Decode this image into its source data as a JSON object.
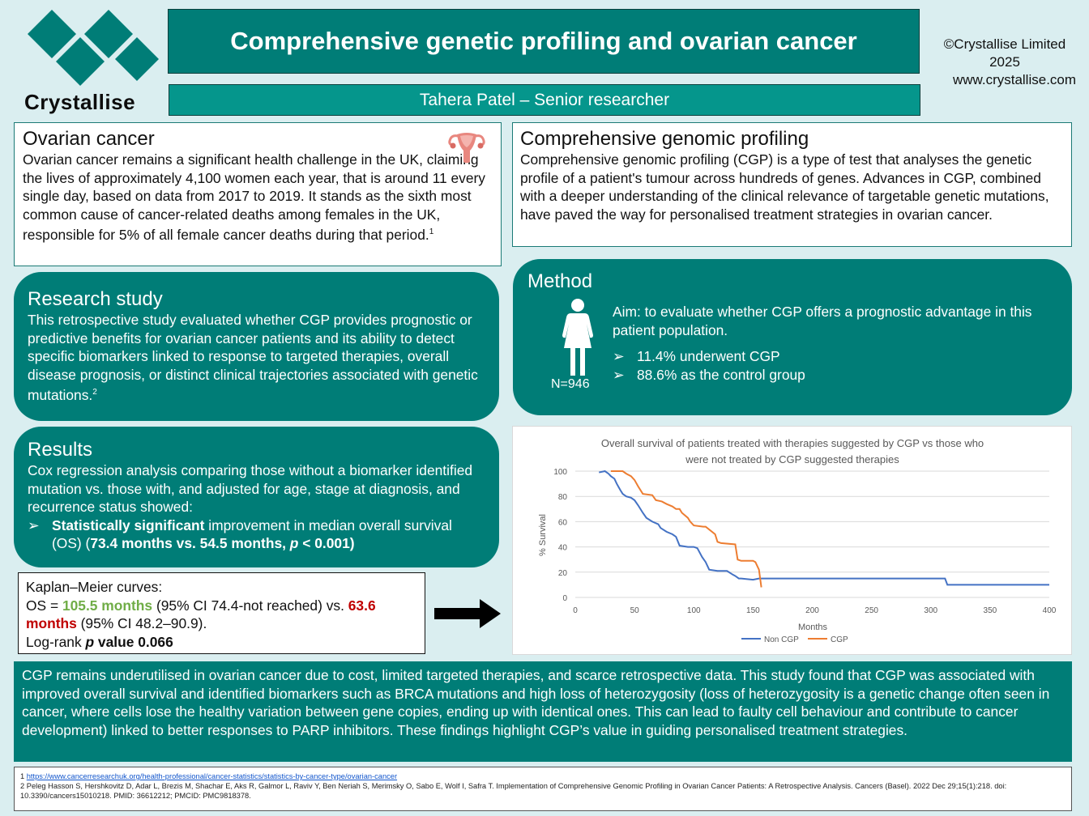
{
  "logo": {
    "wordmark": "Crystallise",
    "icon": "crystallise-diamonds-logo"
  },
  "header": {
    "title": "Comprehensive genetic profiling and ovarian cancer",
    "author": "Tahera Patel – Senior researcher",
    "copyright_line1": "©Crystallise Limited",
    "copyright_line2": "2025",
    "website": "www.crystallise.com"
  },
  "ovarian": {
    "heading": "Ovarian cancer",
    "icon": "uterus-icon",
    "body": "Ovarian cancer remains a significant health challenge in the UK, claiming the lives of approximately 4,100 women each year, that is around 11 every single day, based on data from 2017 to 2019. It stands as the sixth most common cause of cancer-related deaths among females in the UK, responsible for 5% of all female cancer deaths during that period.",
    "ref": "1"
  },
  "cgp": {
    "heading": "Comprehensive genomic profiling",
    "body": "Comprehensive genomic profiling (CGP) is a type of test that analyses the genetic profile of a patient's tumour across hundreds of genes. Advances in CGP, combined with a deeper understanding of the clinical relevance of targetable genetic mutations, have paved the way for personalised treatment strategies in ovarian cancer."
  },
  "research": {
    "heading": "Research study",
    "body": "This retrospective study evaluated whether CGP provides prognostic or predictive benefits for ovarian cancer patients and its ability to detect specific biomarkers linked to response to targeted therapies, overall disease prognosis, or distinct clinical trajectories associated with genetic mutations.",
    "ref": "2"
  },
  "method": {
    "heading": "Method",
    "icon": "woman-icon",
    "n_label": "N=946",
    "aim": "Aim: to evaluate whether CGP offers a prognostic advantage in this patient population.",
    "bullets": [
      "11.4% underwent CGP",
      "88.6% as the control group"
    ]
  },
  "results": {
    "heading": "Results",
    "body": "Cox regression analysis comparing those without a biomarker identified mutation vs. those with, and adjusted for age, stage at diagnosis, and recurrence status showed:",
    "bullet_bold": "Statistically significant",
    "bullet_rest": " improvement in median overall survival (OS) (",
    "bullet_bold2": "73.4 months vs. 54.5 months, ",
    "bullet_p": "p",
    "bullet_bold3": " < 0.001)"
  },
  "km": {
    "heading": "Kaplan–Meier curves:",
    "os_prefix": "OS = ",
    "os_cgp": "105.5 months",
    "os_cgp_ci": " (95% CI 74.4-not reached) vs. ",
    "os_non": "63.6 months",
    "os_non_ci": " (95% CI 48.2–90.9).",
    "logrank_prefix": "Log-rank ",
    "logrank_p": "p",
    "logrank_value": " value 0.066"
  },
  "conclusion": {
    "body": "CGP remains underutilised in ovarian cancer due to cost, limited targeted therapies, and scarce retrospective data. This study found that CGP was associated with improved overall survival and identified biomarkers such as BRCA mutations and high loss of heterozygosity (loss of heterozygosity is a genetic change often seen in cancer, where cells lose the healthy variation between gene copies, ending up with identical ones. This can lead to faulty cell behaviour and contribute to cancer development) linked to better responses to PARP inhibitors. These findings highlight CGP’s value in guiding personalised treatment strategies."
  },
  "references": {
    "ref1_num": "1 ",
    "ref1_link": "https://www.cancerresearchuk.org/health-professional/cancer-statistics/statistics-by-cancer-type/ovarian-cancer",
    "ref2": "2 Peleg Hasson S, Hershkovitz D, Adar L, Brezis M, Shachar E, Aks R, Galmor L, Raviv Y, Ben Neriah S, Merimsky O, Sabo E, Wolf I, Safra T. Implementation of Comprehensive Genomic Profiling in Ovarian Cancer Patients: A Retrospective Analysis. Cancers (Basel). 2022 Dec 29;15(1):218. doi: 10.3390/cancers15010218. PMID: 36612212; PMCID: PMC9818378."
  },
  "colors": {
    "teal": "#007d77",
    "teal_light": "#05968c",
    "background": "#daeef0",
    "non_cgp": "#4472c4",
    "cgp": "#ed7d31"
  },
  "chart_data": {
    "type": "line",
    "title_line1": "Overall survival of patients treated with therapies suggested by CGP vs those who",
    "title_line2": "were not treated by CGP suggested therapies",
    "xlabel": "Months",
    "ylabel": "% Survival",
    "xlim": [
      0,
      400
    ],
    "ylim": [
      0,
      100
    ],
    "xticks": [
      0,
      50,
      100,
      150,
      200,
      250,
      300,
      350,
      400
    ],
    "yticks": [
      0,
      20,
      40,
      60,
      80,
      100
    ],
    "grid": "horizontal",
    "legend_position": "bottom",
    "series": [
      {
        "name": "Non CGP",
        "color": "#4472c4",
        "x": [
          20,
          25,
          28,
          30,
          33,
          35,
          38,
          40,
          43,
          47,
          50,
          53,
          57,
          60,
          65,
          70,
          72,
          77,
          82,
          85,
          88,
          95,
          100,
          103,
          107,
          110,
          113,
          120,
          125,
          128,
          133,
          135,
          138,
          140,
          150,
          155,
          200,
          250,
          300,
          312,
          314,
          350,
          400
        ],
        "y": [
          99,
          100,
          98,
          96,
          94,
          90,
          85,
          82,
          80,
          79,
          77,
          73,
          67,
          63,
          60,
          58,
          55,
          52,
          50,
          48,
          41,
          40,
          40,
          39,
          32,
          28,
          22,
          21,
          21,
          21,
          18,
          17,
          15,
          15,
          14,
          15,
          15,
          15,
          15,
          15,
          10,
          10,
          10
        ]
      },
      {
        "name": "CGP",
        "color": "#ed7d31",
        "x": [
          30,
          40,
          43,
          47,
          50,
          53,
          57,
          65,
          68,
          73,
          77,
          82,
          85,
          88,
          90,
          95,
          97,
          100,
          108,
          110,
          118,
          120,
          123,
          135,
          137,
          140,
          150,
          152,
          155,
          156,
          157
        ],
        "y": [
          100,
          100,
          98,
          96,
          93,
          88,
          82,
          81,
          77,
          76,
          74,
          72,
          70,
          70,
          67,
          63,
          60,
          57,
          56,
          56,
          50,
          44,
          43,
          42,
          30,
          29,
          29,
          28,
          22,
          15,
          8
        ]
      }
    ]
  }
}
